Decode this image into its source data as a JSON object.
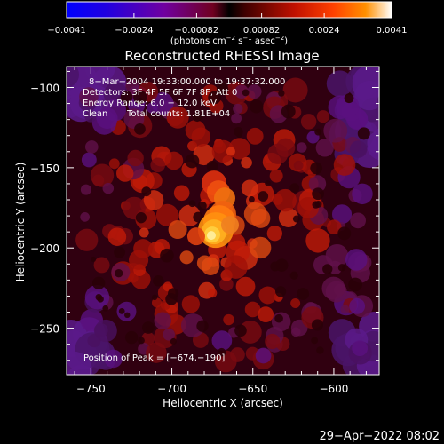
{
  "chart_data": {
    "type": "heatmap",
    "title": "Reconstructed RHESSI Image",
    "xlabel": "Heliocentric X (arcsec)",
    "ylabel": "Heliocentric Y (arcsec)",
    "xlim": [
      -765,
      -572
    ],
    "ylim": [
      -279,
      -87
    ],
    "x_ticks": [
      -750,
      -700,
      -650,
      -600
    ],
    "x_tick_labels": [
      "−750",
      "−700",
      "−650",
      "−600"
    ],
    "y_ticks": [
      -100,
      -150,
      -200,
      -250
    ],
    "y_tick_labels": [
      "−100",
      "−150",
      "−200",
      "−250"
    ],
    "colorbar": {
      "min": -0.0041,
      "max": 0.0041,
      "ticks": [
        -0.0041,
        -0.0024,
        -0.00082,
        0.00082,
        0.0024,
        0.0041
      ],
      "tick_labels": [
        "−0.0041",
        "−0.0024",
        "−0.00082",
        "0.00082",
        "0.0024",
        "0.0041"
      ],
      "units_text": "(photons cm",
      "units_exp1": "−2",
      "units_s": " s",
      "units_exp2": "−1",
      "units_asec": " asec",
      "units_exp3": "−2",
      "units_close": ")"
    },
    "annotations": {
      "time_range": "8−Mar−2004 19:33:00.000 to 19:37:32.000",
      "detectors": "Detectors: 3F 4F 5F 6F 7F 8F, Att 0",
      "energy_range": "Energy Range: 6.0 − 12.0 keV",
      "clean_label": "Clean",
      "total_counts": "Total counts: 1.81E+04",
      "peak_position": "Position of Peak = [−674,−190]"
    },
    "peak": {
      "x": -674,
      "y": -190
    },
    "grid": false
  },
  "timestamp": "29−Apr−2022 08:02"
}
